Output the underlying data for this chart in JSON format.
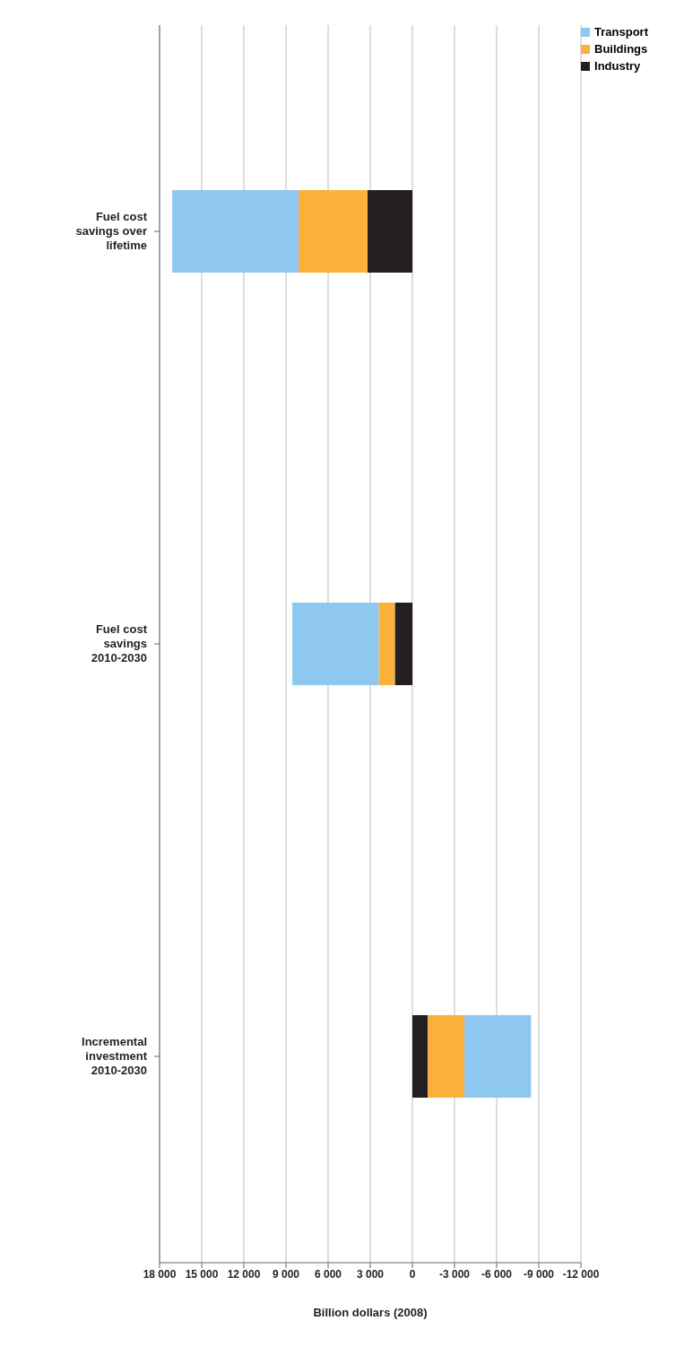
{
  "chart_data": {
    "type": "bar",
    "orientation": "horizontal",
    "stacked": true,
    "xlabel": "Billion dollars (2008)",
    "categories": [
      "Fuel cost savings over lifetime",
      "Fuel cost savings 2010-2030",
      "Incremental investment 2010-2030"
    ],
    "series": [
      {
        "name": "Industry",
        "color": "#231f20",
        "values": [
          3200,
          1250,
          -1100
        ]
      },
      {
        "name": "Buildings",
        "color": "#fbb03b",
        "values": [
          4900,
          1150,
          -2600
        ]
      },
      {
        "name": "Transport",
        "color": "#8ec8f0",
        "values": [
          9000,
          6150,
          -4750
        ]
      }
    ],
    "xlim": [
      18000,
      -12000
    ],
    "xticks": [
      {
        "value": 18000,
        "label": "18 000"
      },
      {
        "value": 15000,
        "label": "15 000"
      },
      {
        "value": 12000,
        "label": "12 000"
      },
      {
        "value": 9000,
        "label": "9 000"
      },
      {
        "value": 6000,
        "label": "6 000"
      },
      {
        "value": 3000,
        "label": "3 000"
      },
      0,
      {
        "value": -3000,
        "label": "-3 000"
      },
      {
        "value": -6000,
        "label": "-6 000"
      },
      {
        "value": -9000,
        "label": "-9 000"
      },
      {
        "value": -12000,
        "label": "-12 000"
      }
    ],
    "grid": "x",
    "legend": "top right"
  }
}
